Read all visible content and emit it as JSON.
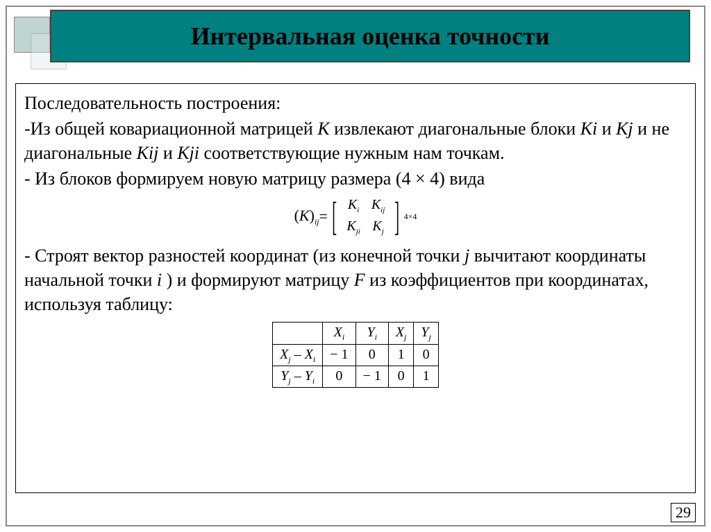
{
  "title": "Интервальная оценка точности",
  "para_intro": "Последовательность построения:",
  "para1_a": "-Из общей ковариационной матрицей ",
  "para1_K": "К",
  "para1_b": " извлекают диагональные блоки ",
  "para1_Ki": "Кi",
  "para1_c": " и ",
  "para1_Kj": "Кj",
  "para1_d": " и не диагональные ",
  "para1_Kij": "Кij",
  "para1_e": "  и ",
  "para1_Kji": "Кji",
  "para1_f": " соответствующие нужным нам точкам.",
  "para2": "- Из блоков формируем новую  матрицу  размера (4 × 4) вида",
  "formula_lhs_open": "(",
  "formula_lhs_K": "K",
  "formula_lhs_close": ")",
  "formula_lhs_sub": "ij",
  "formula_eq": " = ",
  "m11_K": "K",
  "m11_s": "i",
  "m12_K": "K",
  "m12_s": "ij",
  "m21_K": "K",
  "m21_s": "ji",
  "m22_K": "K",
  "m22_s": "j",
  "matrix_size": "4×4",
  "para3_a": "- Строят вектор разностей координат (из  конечной точки ",
  "para3_j": "j",
  "para3_b": " вычитают координаты начальной точки ",
  "para3_i": "i",
  "para3_c": " ) и формируют матрицу ",
  "para3_F": "F",
  "para3_d": " из коэффициентов при координатах, используя таблицу:",
  "tbl": {
    "h1": "X",
    "h1s": "i",
    "h2": "Y",
    "h2s": "i",
    "h3": "X",
    "h3s": "j",
    "h4": "Y",
    "h4s": "j",
    "r1h_a": "X",
    "r1h_as": "j",
    "r1h_m": " – ",
    "r1h_b": "X",
    "r1h_bs": "i",
    "r2h_a": "Y",
    "r2h_as": "j",
    "r2h_m": " – ",
    "r2h_b": "Y",
    "r2h_bs": "i",
    "r1c1": "− 1",
    "r1c2": "0",
    "r1c3": "1",
    "r1c4": "0",
    "r2c1": "0",
    "r2c2": "− 1",
    "r2c3": "0",
    "r2c4": "1"
  },
  "page_number": "29",
  "colors": {
    "title_bg": "#008080",
    "title_text": "#000000",
    "border": "#888888",
    "content_border": "#000000"
  }
}
